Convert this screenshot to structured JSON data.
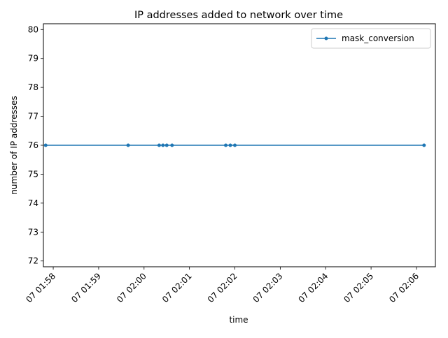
{
  "chart_data": {
    "type": "line",
    "title": "IP addresses added to network over time",
    "xlabel": "time",
    "ylabel": "number of IP addresses",
    "xlim": [
      "07 01:57:47",
      "07 02:06:25"
    ],
    "ylim": [
      71.8,
      80.2
    ],
    "x_ticks": [
      "07 01:58",
      "07 01:59",
      "07 02:00",
      "07 02:01",
      "07 02:02",
      "07 02:03",
      "07 02:04",
      "07 02:05",
      "07 02:06"
    ],
    "y_ticks": [
      72,
      73,
      74,
      75,
      76,
      77,
      78,
      79,
      80
    ],
    "grid": false,
    "legend": "top-right",
    "series": [
      {
        "name": "mask_conversion",
        "color": "#1f77b4",
        "marker": "point",
        "points": [
          {
            "x": "07 01:57:50",
            "y": 76
          },
          {
            "x": "07 01:59:39",
            "y": 76
          },
          {
            "x": "07 02:00:20",
            "y": 76
          },
          {
            "x": "07 02:00:25",
            "y": 76
          },
          {
            "x": "07 02:00:30",
            "y": 76
          },
          {
            "x": "07 02:00:37",
            "y": 76
          },
          {
            "x": "07 02:01:48",
            "y": 76
          },
          {
            "x": "07 02:01:54",
            "y": 76
          },
          {
            "x": "07 02:02:00",
            "y": 76
          },
          {
            "x": "07 02:06:10",
            "y": 76
          }
        ]
      }
    ]
  }
}
